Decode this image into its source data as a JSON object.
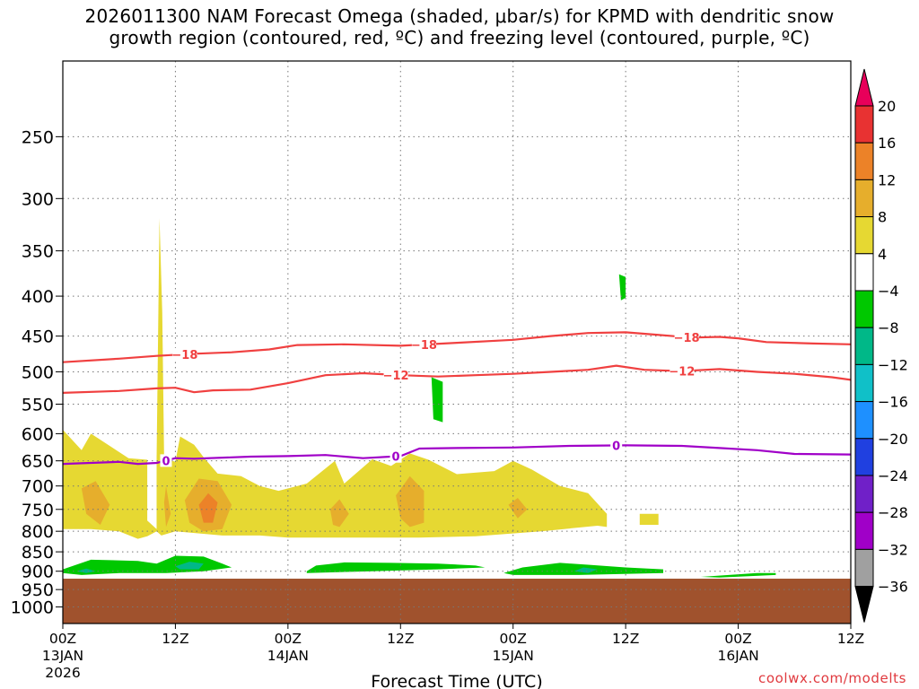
{
  "title_line1": "2026011300 NAM Forecast Omega (shaded, μbar/s) for KPMD with dendritic snow",
  "title_line2": "growth region (contoured, red, ºC) and freezing level (contoured, purple, ºC)",
  "credit": "coolwx.com/modelts",
  "chart_data": {
    "type": "area",
    "title": "2026011300 NAM Forecast Omega (shaded, μbar/s) for KPMD with dendritic snow growth region (contoured, red, ºC) and freezing level (contoured, purple, ºC)",
    "xlabel": "Forecast Time (UTC)",
    "ylabel": "",
    "x_range_hours": [
      0,
      84
    ],
    "x_ticks": [
      {
        "hour": 0,
        "labels": [
          "00Z",
          "13JAN",
          "2026"
        ]
      },
      {
        "hour": 12,
        "labels": [
          "12Z"
        ]
      },
      {
        "hour": 24,
        "labels": [
          "00Z",
          "14JAN"
        ]
      },
      {
        "hour": 36,
        "labels": [
          "12Z"
        ]
      },
      {
        "hour": 48,
        "labels": [
          "00Z",
          "15JAN"
        ]
      },
      {
        "hour": 60,
        "labels": [
          "12Z"
        ]
      },
      {
        "hour": 72,
        "labels": [
          "00Z",
          "16JAN"
        ]
      },
      {
        "hour": 84,
        "labels": [
          "12Z"
        ]
      }
    ],
    "y_scale": "log-pressure",
    "y_range_hpa": [
      1050,
      200
    ],
    "y_ticks": [
      250,
      300,
      350,
      400,
      450,
      500,
      550,
      600,
      650,
      700,
      750,
      800,
      850,
      900,
      950,
      1000
    ],
    "grid": true,
    "surface_pressure_hpa": 920,
    "surface_color": "#a0522d",
    "colorbar": {
      "labels": [
        "20",
        "16",
        "12",
        "8",
        "4",
        "−4",
        "−8",
        "−12",
        "−16",
        "−20",
        "−24",
        "−28",
        "−32",
        "−36"
      ],
      "levels": [
        20,
        16,
        12,
        8,
        4,
        -4,
        -8,
        -12,
        -16,
        -20,
        -24,
        -28,
        -32,
        -36
      ],
      "colors": [
        "#e8005a",
        "#e83232",
        "#ec8228",
        "#e6ae2c",
        "#e6d832",
        "#ffffff",
        "#00c800",
        "#00b888",
        "#10c0c8",
        "#1e90ff",
        "#2040e0",
        "#7020c8",
        "#a000c8",
        "#a0a0a0",
        "#000000"
      ]
    },
    "contours": [
      {
        "label": "−18",
        "color": "#f04040",
        "points": [
          [
            0,
            486
          ],
          [
            6,
            481
          ],
          [
            10,
            477
          ],
          [
            14,
            474
          ],
          [
            18,
            472
          ],
          [
            22,
            468
          ],
          [
            25,
            462
          ],
          [
            30,
            461
          ],
          [
            36,
            463
          ],
          [
            42,
            459
          ],
          [
            48,
            455
          ],
          [
            52,
            450
          ],
          [
            56,
            446
          ],
          [
            60,
            445
          ],
          [
            63,
            448
          ],
          [
            67,
            452
          ],
          [
            70,
            451
          ],
          [
            72,
            453
          ],
          [
            75,
            458
          ],
          [
            80,
            460
          ],
          [
            84,
            461
          ]
        ],
        "label_hours": [
          13,
          38.5,
          66.5
        ]
      },
      {
        "label": "−12",
        "color": "#f04040",
        "points": [
          [
            0,
            532
          ],
          [
            6,
            529
          ],
          [
            10,
            525
          ],
          [
            12,
            524
          ],
          [
            14,
            531
          ],
          [
            16,
            528
          ],
          [
            20,
            527
          ],
          [
            24,
            517
          ],
          [
            28,
            505
          ],
          [
            32,
            502
          ],
          [
            36,
            505
          ],
          [
            40,
            507
          ],
          [
            44,
            505
          ],
          [
            48,
            503
          ],
          [
            52,
            500
          ],
          [
            56,
            497
          ],
          [
            59,
            491
          ],
          [
            62,
            497
          ],
          [
            66,
            499
          ],
          [
            70,
            496
          ],
          [
            74,
            500
          ],
          [
            78,
            503
          ],
          [
            82,
            508
          ],
          [
            84,
            512
          ]
        ],
        "label_hours": [
          35.5,
          66
        ]
      },
      {
        "label": "0",
        "color": "#a000c8",
        "points": [
          [
            0,
            656
          ],
          [
            6,
            652
          ],
          [
            8,
            656
          ],
          [
            10,
            654
          ],
          [
            12,
            645
          ],
          [
            14,
            646
          ],
          [
            20,
            642
          ],
          [
            24,
            641
          ],
          [
            28,
            639
          ],
          [
            32,
            645
          ],
          [
            36,
            641
          ],
          [
            38,
            627
          ],
          [
            42,
            626
          ],
          [
            48,
            625
          ],
          [
            54,
            622
          ],
          [
            60,
            621
          ],
          [
            66,
            622
          ],
          [
            70,
            626
          ],
          [
            74,
            630
          ],
          [
            78,
            637
          ],
          [
            84,
            638
          ]
        ],
        "label_hours": [
          11,
          35.5,
          59
        ]
      }
    ],
    "omega_regions": [
      {
        "color": "#e6d832",
        "polygon": [
          [
            0,
            593
          ],
          [
            2,
            630
          ],
          [
            3,
            600
          ],
          [
            7,
            645
          ],
          [
            9,
            648
          ],
          [
            9,
            775
          ],
          [
            10,
            795
          ],
          [
            10,
            640
          ],
          [
            12,
            652
          ],
          [
            12.5,
            605
          ],
          [
            14,
            620
          ],
          [
            15,
            643
          ],
          [
            16.5,
            675
          ],
          [
            19,
            680
          ],
          [
            21,
            700
          ],
          [
            23,
            710
          ],
          [
            26,
            695
          ],
          [
            29,
            650
          ],
          [
            30,
            695
          ],
          [
            33,
            647
          ],
          [
            35,
            660
          ],
          [
            37,
            636
          ],
          [
            39,
            648
          ],
          [
            42,
            676
          ],
          [
            46,
            670
          ],
          [
            48,
            650
          ],
          [
            50,
            667
          ],
          [
            53,
            700
          ],
          [
            56,
            715
          ],
          [
            58,
            760
          ],
          [
            58,
            790
          ],
          [
            57,
            787
          ],
          [
            51,
            800
          ],
          [
            44,
            812
          ],
          [
            38,
            815
          ],
          [
            30,
            815
          ],
          [
            24,
            815
          ],
          [
            21,
            810
          ],
          [
            17,
            810
          ],
          [
            12,
            800
          ],
          [
            10.5,
            810
          ],
          [
            10,
            800
          ],
          [
            9,
            812
          ],
          [
            8,
            818
          ],
          [
            6,
            800
          ],
          [
            3,
            795
          ],
          [
            0,
            795
          ]
        ]
      },
      {
        "color": "#e6d832",
        "polygon": [
          [
            10,
            645
          ],
          [
            10.3,
            318
          ],
          [
            10.6,
            420
          ],
          [
            10.8,
            650
          ],
          [
            10.8,
            795
          ],
          [
            10.2,
            795
          ]
        ]
      },
      {
        "color": "#e6d832",
        "polygon": [
          [
            61.5,
            760
          ],
          [
            63.5,
            760
          ],
          [
            63.5,
            785
          ],
          [
            61.5,
            785
          ]
        ]
      },
      {
        "color": "#e6ae2c",
        "polygon": [
          [
            2,
            705
          ],
          [
            3.5,
            690
          ],
          [
            5,
            740
          ],
          [
            4,
            785
          ],
          [
            2.5,
            760
          ]
        ]
      },
      {
        "color": "#e6ae2c",
        "polygon": [
          [
            10.8,
            735
          ],
          [
            11,
            700
          ],
          [
            11.5,
            760
          ],
          [
            11,
            790
          ]
        ]
      },
      {
        "color": "#e6ae2c",
        "polygon": [
          [
            13,
            730
          ],
          [
            14.5,
            685
          ],
          [
            16.5,
            690
          ],
          [
            18,
            740
          ],
          [
            17,
            795
          ],
          [
            15,
            800
          ],
          [
            13.5,
            780
          ]
        ]
      },
      {
        "color": "#ec8228",
        "polygon": [
          [
            14.5,
            740
          ],
          [
            15.5,
            715
          ],
          [
            16.5,
            735
          ],
          [
            16,
            780
          ],
          [
            15,
            780
          ]
        ]
      },
      {
        "color": "#e6ae2c",
        "polygon": [
          [
            28.5,
            750
          ],
          [
            29.5,
            728
          ],
          [
            30.5,
            760
          ],
          [
            29.5,
            790
          ],
          [
            28.8,
            785
          ]
        ]
      },
      {
        "color": "#e6ae2c",
        "polygon": [
          [
            35.5,
            720
          ],
          [
            37,
            680
          ],
          [
            38.5,
            710
          ],
          [
            38.5,
            780
          ],
          [
            37,
            790
          ],
          [
            36,
            770
          ]
        ]
      },
      {
        "color": "#e6ae2c",
        "polygon": [
          [
            47.5,
            740
          ],
          [
            48.5,
            725
          ],
          [
            49.5,
            750
          ],
          [
            48.5,
            770
          ]
        ]
      },
      {
        "color": "#00c800",
        "polygon": [
          [
            0,
            895
          ],
          [
            3,
            870
          ],
          [
            8,
            873
          ],
          [
            10,
            880
          ],
          [
            12,
            860
          ],
          [
            15,
            862
          ],
          [
            17,
            880
          ],
          [
            18,
            890
          ],
          [
            15,
            900
          ],
          [
            11,
            905
          ],
          [
            6,
            905
          ],
          [
            2,
            910
          ],
          [
            0,
            905
          ]
        ]
      },
      {
        "color": "#00c800",
        "polygon": [
          [
            26,
            900
          ],
          [
            27,
            885
          ],
          [
            30,
            877
          ],
          [
            35,
            878
          ],
          [
            40,
            880
          ],
          [
            44,
            885
          ],
          [
            45,
            890
          ],
          [
            40,
            895
          ],
          [
            33,
            900
          ],
          [
            26,
            905
          ]
        ]
      },
      {
        "color": "#00c800",
        "polygon": [
          [
            47,
            905
          ],
          [
            49,
            890
          ],
          [
            53,
            878
          ],
          [
            56,
            883
          ],
          [
            60,
            890
          ],
          [
            64,
            895
          ],
          [
            64,
            905
          ],
          [
            55,
            910
          ],
          [
            48,
            910
          ]
        ]
      },
      {
        "color": "#00c800",
        "polygon": [
          [
            68,
            915
          ],
          [
            74,
            905
          ],
          [
            76,
            905
          ],
          [
            76,
            910
          ],
          [
            70,
            917
          ]
        ]
      },
      {
        "color": "#00c800",
        "polygon": [
          [
            39.3,
            508
          ],
          [
            40.5,
            515
          ],
          [
            40.5,
            580
          ],
          [
            39.5,
            575
          ]
        ]
      },
      {
        "color": "#00c800",
        "polygon": [
          [
            59.3,
            375
          ],
          [
            60,
            378
          ],
          [
            60,
            402
          ],
          [
            59.5,
            405
          ]
        ]
      },
      {
        "color": "#00b888",
        "polygon": [
          [
            1.5,
            900
          ],
          [
            2.5,
            893
          ],
          [
            3.5,
            900
          ],
          [
            2.5,
            905
          ]
        ]
      },
      {
        "color": "#00b888",
        "polygon": [
          [
            12,
            887
          ],
          [
            13.5,
            875
          ],
          [
            15,
            880
          ],
          [
            14.5,
            895
          ],
          [
            12.5,
            895
          ]
        ]
      },
      {
        "color": "#00b888",
        "polygon": [
          [
            54.5,
            900
          ],
          [
            55.5,
            890
          ],
          [
            57,
            895
          ],
          [
            56,
            905
          ]
        ]
      }
    ]
  }
}
